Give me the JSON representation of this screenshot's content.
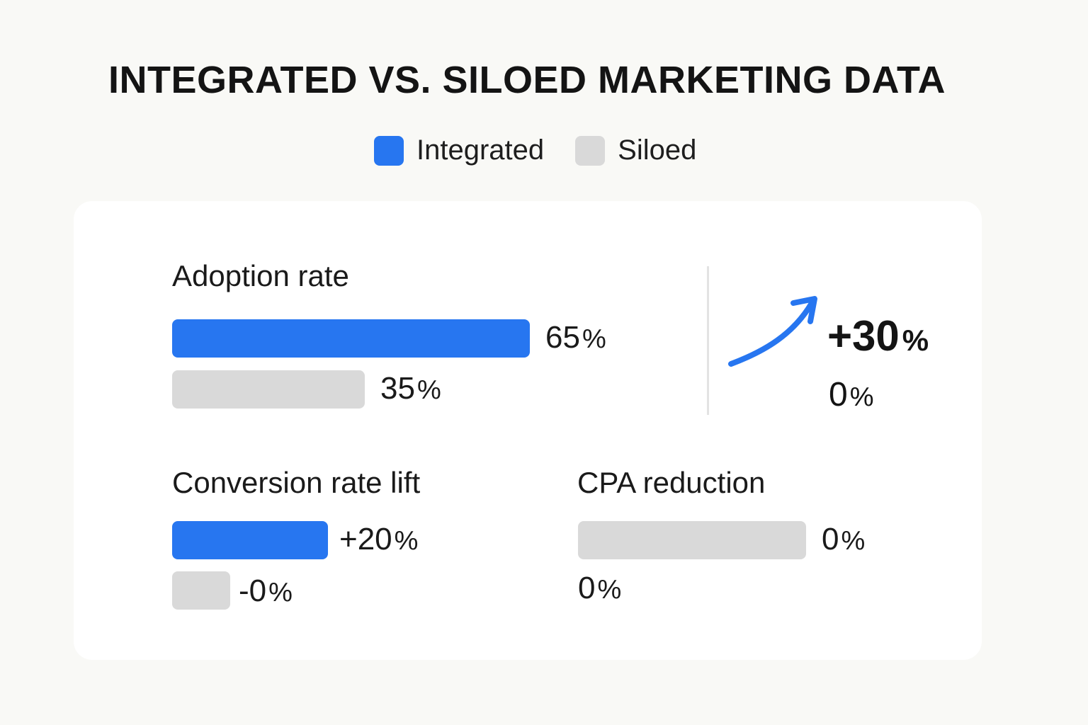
{
  "title": "INTEGRATED VS. SILOED MARKETING DATA",
  "legend": [
    {
      "label": "Integrated",
      "color": "#2776f0"
    },
    {
      "label": "Siloed",
      "color": "#d9d9d9"
    }
  ],
  "colors": {
    "integrated": "#2776f0",
    "siloed": "#d9d9d9",
    "background": "#f9f9f6",
    "card": "#ffffff"
  },
  "chart_data": [
    {
      "type": "bar",
      "orientation": "horizontal",
      "title": "Adoption rate",
      "series": [
        {
          "name": "Integrated",
          "value": 65,
          "label_number": "65",
          "label_unit": "%"
        },
        {
          "name": "Siloed",
          "value": 35,
          "label_number": "35",
          "label_unit": "%"
        }
      ],
      "xlim": [
        0,
        100
      ]
    },
    {
      "type": "bar",
      "orientation": "horizontal",
      "title": "Conversion rate lift",
      "series": [
        {
          "name": "Integrated",
          "value": 20,
          "label_number": "+20",
          "label_unit": "%"
        },
        {
          "name": "Siloed",
          "value": 0,
          "label_number": "-0",
          "label_unit": "%"
        }
      ],
      "xlim": [
        -5,
        25
      ]
    },
    {
      "type": "bar",
      "orientation": "horizontal",
      "title": "CPA reduction",
      "series": [
        {
          "name": "Siloed",
          "value": 0,
          "label_number": "0",
          "label_unit": "%"
        },
        {
          "name": "Integrated",
          "value": 0,
          "label_number": "0",
          "label_unit": "%"
        }
      ]
    }
  ],
  "change_summary": {
    "icon": "trend-up-arrow-icon",
    "increase_number": "+30",
    "increase_unit": "%",
    "baseline_number": "0",
    "baseline_unit": "%"
  }
}
